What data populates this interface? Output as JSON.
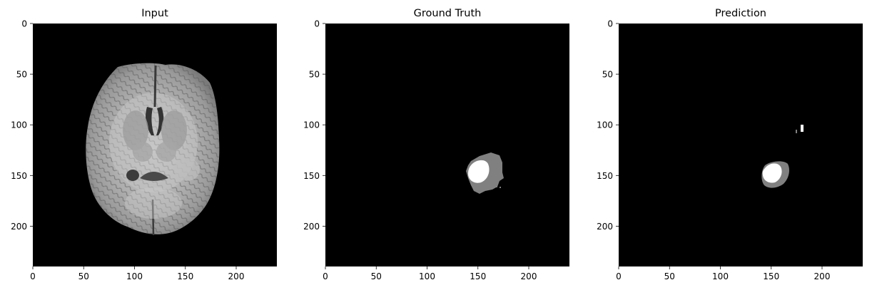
{
  "chart_data": [
    {
      "type": "heatmap",
      "title": "Input",
      "content": "brain-mri-axial-slice",
      "colormap": "gray",
      "image_size": [
        240,
        240
      ],
      "xlim": [
        0,
        240
      ],
      "ylim": [
        240,
        0
      ],
      "xticks": [
        0,
        50,
        100,
        150,
        200
      ],
      "yticks": [
        0,
        50,
        100,
        150,
        200
      ],
      "xtick_labels": [
        "0",
        "50",
        "100",
        "150",
        "200"
      ],
      "ytick_labels": [
        "0",
        "50",
        "100",
        "150",
        "200"
      ],
      "regions": [
        {
          "name": "brain",
          "shape": "ellipse",
          "center": [
            131,
            143
          ],
          "radius": [
            62,
            83
          ],
          "intensity": 0.7
        }
      ]
    },
    {
      "type": "heatmap",
      "title": "Ground Truth",
      "content": "segmentation-mask",
      "colormap": "gray",
      "image_size": [
        240,
        240
      ],
      "xlim": [
        0,
        240
      ],
      "ylim": [
        240,
        0
      ],
      "xticks": [
        0,
        50,
        100,
        150,
        200
      ],
      "yticks": [
        0,
        50,
        100,
        150,
        200
      ],
      "xtick_labels": [
        "0",
        "50",
        "100",
        "150",
        "200"
      ],
      "ytick_labels": [
        "0",
        "50",
        "100",
        "150",
        "200"
      ],
      "regions": [
        {
          "label": 1,
          "shape": "blob",
          "center": [
            160,
            148
          ],
          "radius": [
            17,
            20
          ],
          "intensity": 0.5
        },
        {
          "label": 2,
          "shape": "ellipse",
          "center": [
            152,
            145
          ],
          "radius": [
            8,
            10
          ],
          "intensity": 1.0
        }
      ]
    },
    {
      "type": "heatmap",
      "title": "Prediction",
      "content": "segmentation-mask",
      "colormap": "gray",
      "image_size": [
        240,
        240
      ],
      "xlim": [
        0,
        240
      ],
      "ylim": [
        240,
        0
      ],
      "xticks": [
        0,
        50,
        100,
        150,
        200
      ],
      "yticks": [
        0,
        50,
        100,
        150,
        200
      ],
      "xtick_labels": [
        "0",
        "50",
        "100",
        "150",
        "200"
      ],
      "ytick_labels": [
        "0",
        "50",
        "100",
        "150",
        "200"
      ],
      "regions": [
        {
          "label": 1,
          "shape": "blob",
          "center": [
            157,
            146
          ],
          "radius": [
            12,
            13
          ],
          "intensity": 0.5
        },
        {
          "label": 2,
          "shape": "ellipse",
          "center": [
            153,
            146
          ],
          "radius": [
            8,
            9
          ],
          "intensity": 1.0
        },
        {
          "label": 2,
          "shape": "speck",
          "center": [
            180,
            103
          ],
          "radius": [
            1.5,
            4
          ],
          "intensity": 1.0
        },
        {
          "label": 1,
          "shape": "speck",
          "center": [
            176,
            107
          ],
          "radius": [
            1,
            2
          ],
          "intensity": 0.5
        }
      ]
    }
  ]
}
